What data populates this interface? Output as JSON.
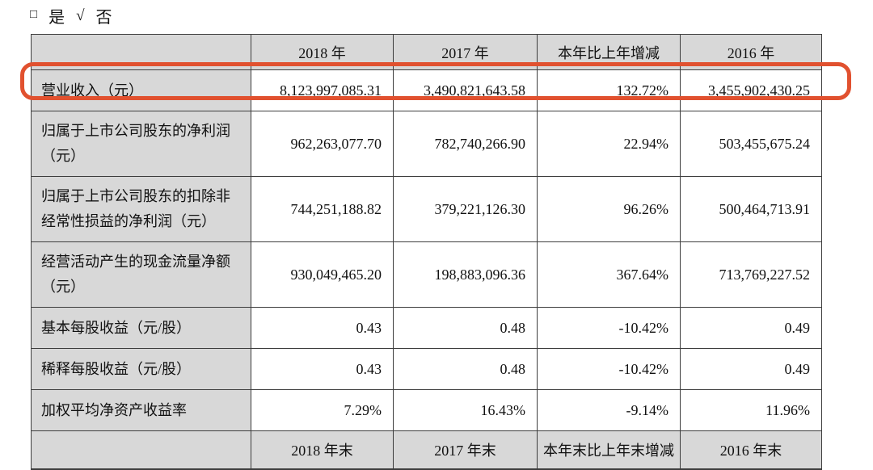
{
  "checkbox_line": {
    "unchecked_box": "□",
    "yes_label": "是",
    "check_mark": "√",
    "no_label": "否"
  },
  "table": {
    "colors": {
      "header_bg": "#d8d8d8",
      "border": "#3d3d3d",
      "highlight_stroke": "#e1512f"
    },
    "header": [
      "",
      "2018 年",
      "2017 年",
      "本年比上年增减",
      "2016 年"
    ],
    "rows": [
      {
        "label": "营业收入（元）",
        "values": [
          "8,123,997,085.31",
          "3,490,821,643.58",
          "132.72%",
          "3,455,902,430.25"
        ],
        "highlighted": true
      },
      {
        "label": "归属于上市公司股东的净利润（元）",
        "values": [
          "962,263,077.70",
          "782,740,266.90",
          "22.94%",
          "503,455,675.24"
        ],
        "highlighted": false
      },
      {
        "label": "归属于上市公司股东的扣除非经常性损益的净利润（元）",
        "values": [
          "744,251,188.82",
          "379,221,126.30",
          "96.26%",
          "500,464,713.91"
        ],
        "highlighted": false
      },
      {
        "label": "经营活动产生的现金流量净额（元）",
        "values": [
          "930,049,465.20",
          "198,883,096.36",
          "367.64%",
          "713,769,227.52"
        ],
        "highlighted": false
      },
      {
        "label": "基本每股收益（元/股）",
        "values": [
          "0.43",
          "0.48",
          "-10.42%",
          "0.49"
        ],
        "highlighted": false
      },
      {
        "label": "稀释每股收益（元/股）",
        "values": [
          "0.43",
          "0.48",
          "-10.42%",
          "0.49"
        ],
        "highlighted": false
      },
      {
        "label": "加权平均净资产收益率",
        "values": [
          "7.29%",
          "16.43%",
          "-9.14%",
          "11.96%"
        ],
        "highlighted": false
      }
    ],
    "footer": [
      "",
      "2018 年末",
      "2017 年末",
      "本年末比上年末增减",
      "2016 年末"
    ]
  }
}
